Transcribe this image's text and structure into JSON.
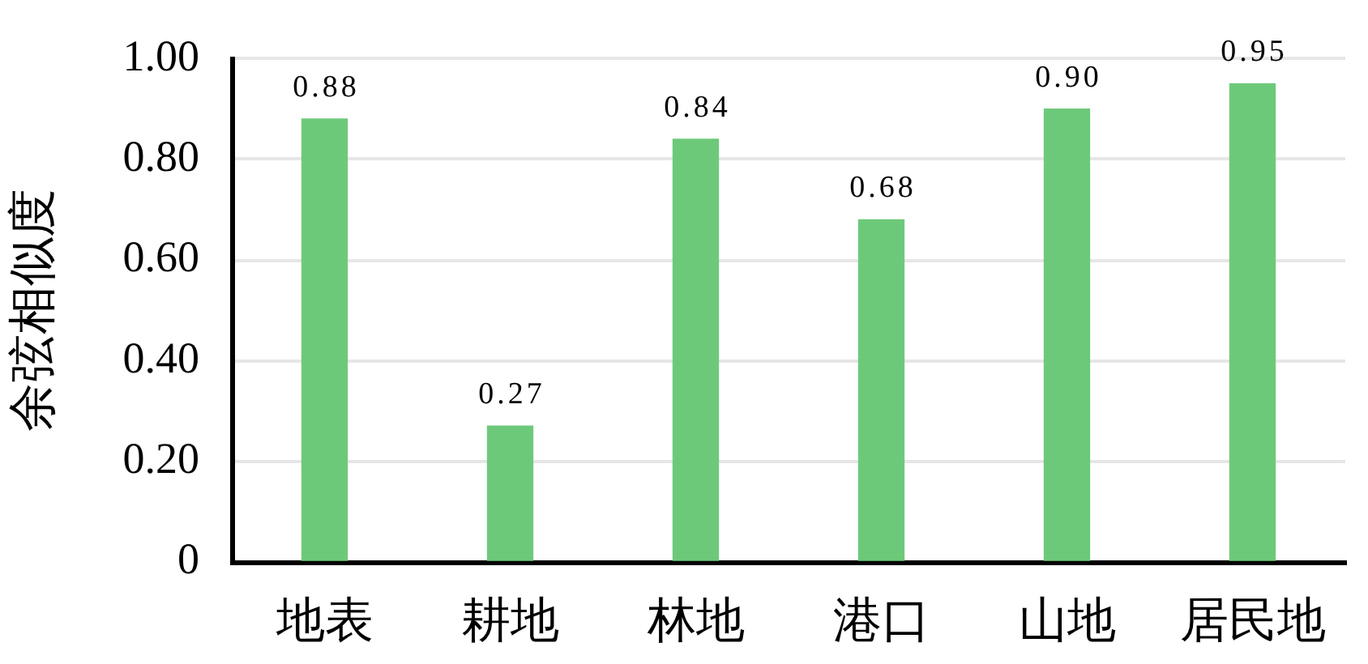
{
  "chart_data": {
    "type": "bar",
    "ylabel": "余弦相似度",
    "categories": [
      "地表",
      "耕地",
      "林地",
      "港口",
      "山地",
      "居民地"
    ],
    "values": [
      0.88,
      0.27,
      0.84,
      0.68,
      0.9,
      0.95
    ],
    "value_labels": [
      "0.88",
      "0.27",
      "0.84",
      "0.68",
      "0.90",
      "0.95"
    ],
    "color": "#6dc97a",
    "ylim": [
      0,
      1
    ],
    "yticks": [
      0,
      {
        "value": 0.2,
        "label": "0.20"
      },
      {
        "value": 0.4,
        "label": "0.40"
      },
      {
        "value": 0.6,
        "label": "0.60"
      },
      {
        "value": 0.8,
        "label": "0.80"
      },
      {
        "value": 1,
        "label": "1.00"
      }
    ],
    "grid": "y"
  }
}
